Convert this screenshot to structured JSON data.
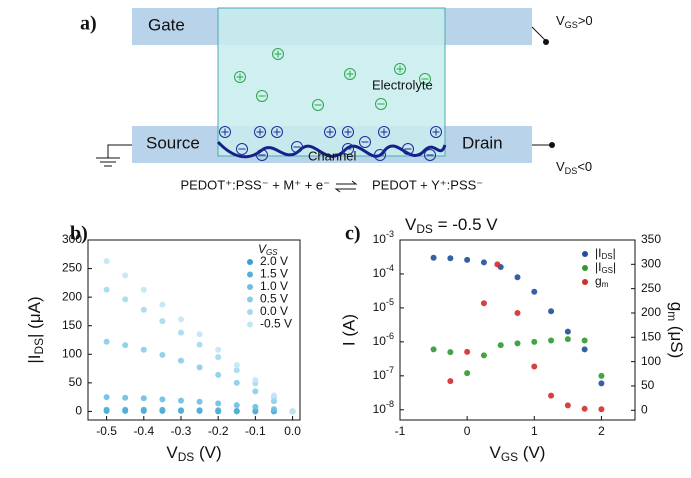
{
  "diagram": {
    "label": "a)",
    "gate": "Gate",
    "source": "Source",
    "drain": "Drain",
    "channel": "Channel",
    "electrolyte": "Electrolyte",
    "vgs": {
      "main": "V",
      "sub": "GS",
      "rest": ">0"
    },
    "vds": {
      "main": "V",
      "sub": "DS",
      "rest": "<0"
    },
    "equation_left": "PEDOT⁺:PSS⁻ + M⁺ + e⁻",
    "equation_right": "PEDOT + Y⁺:PSS⁻"
  },
  "chart_data": [
    {
      "type": "scatter",
      "panel": "b)",
      "x_label": {
        "main": "V",
        "sub": "DS",
        "rest": " (V)"
      },
      "y_label": {
        "pre": "|I",
        "sub": "DS",
        "rest": "| (μA)"
      },
      "legend_title": "VGS",
      "x": [
        -0.5,
        -0.45,
        -0.4,
        -0.35,
        -0.3,
        -0.25,
        -0.2,
        -0.15,
        -0.1,
        -0.05,
        0
      ],
      "xlim": [
        -0.55,
        0.02
      ],
      "xticks": [
        -0.5,
        -0.4,
        -0.3,
        -0.2,
        -0.1,
        {
          "value": 0,
          "label": "0.0"
        }
      ],
      "ylim": [
        -15,
        300
      ],
      "yticks": [
        0,
        50,
        100,
        150,
        200,
        250,
        300
      ],
      "series": [
        {
          "name": "2.0 V",
          "color": "#3aa0cf",
          "values": [
            1,
            1,
            1,
            1,
            1,
            1,
            0,
            0,
            0,
            0,
            0
          ]
        },
        {
          "name": "1.5 V",
          "color": "#52b0da",
          "values": [
            3,
            3,
            3,
            3,
            2,
            2,
            2,
            1,
            1,
            0,
            0
          ]
        },
        {
          "name": "1.0 V",
          "color": "#6cbfe2",
          "values": [
            25,
            24,
            23,
            21,
            19,
            17,
            14,
            11,
            8,
            4,
            0
          ]
        },
        {
          "name": "0.5 V",
          "color": "#88cce8",
          "values": [
            122,
            116,
            108,
            99,
            89,
            77,
            64,
            50,
            35,
            18,
            0
          ]
        },
        {
          "name": "0.0 V",
          "color": "#a4d9ee",
          "values": [
            213,
            196,
            178,
            158,
            138,
            117,
            95,
            72,
            49,
            25,
            0
          ]
        },
        {
          "name": "-0.5 V",
          "color": "#c2e6f4",
          "values": [
            263,
            238,
            213,
            187,
            161,
            135,
            108,
            81,
            55,
            28,
            0
          ]
        }
      ]
    },
    {
      "type": "scatter",
      "panel": "c)",
      "title": {
        "main": "V",
        "sub": "DS",
        "rest": " = -0.5 V"
      },
      "x_label": {
        "main": "V",
        "sub": "GS",
        "rest": " (V)"
      },
      "y_label": "I (A)",
      "y2_label": {
        "main": "g",
        "sub": "m",
        "rest": " (μS)"
      },
      "log_y": true,
      "xlim": [
        -1,
        2.5
      ],
      "xticks": [
        -1,
        0,
        1,
        2
      ],
      "ylim": [
        5e-09,
        0.001
      ],
      "yticks": [
        {
          "value": 1e-08,
          "label": "10-8"
        },
        {
          "value": 1e-07,
          "label": "10-7"
        },
        {
          "value": 1e-06,
          "label": "10-6"
        },
        {
          "value": 1e-05,
          "label": "10-5"
        },
        {
          "value": 0.0001,
          "label": "10-4"
        },
        {
          "value": 0.001,
          "label": "10-3"
        }
      ],
      "y2lim": [
        -20,
        350
      ],
      "y2ticks": [
        0,
        50,
        100,
        150,
        200,
        250,
        300,
        350
      ],
      "series": [
        {
          "name": "|IDS|",
          "color": "#1f4e9c",
          "x": [
            -0.5,
            -0.25,
            0,
            0.25,
            0.5,
            0.75,
            1,
            1.25,
            1.5,
            1.75,
            2
          ],
          "values": [
            0.0003,
            0.00029,
            0.00026,
            0.00022,
            0.00016,
            8e-05,
            3e-05,
            8e-06,
            2e-06,
            6e-07,
            6e-08
          ]
        },
        {
          "name": "|IGS|",
          "color": "#2e9a2e",
          "x": [
            -0.5,
            -0.25,
            0,
            0.25,
            0.5,
            0.75,
            1,
            1.25,
            1.5,
            1.75,
            2
          ],
          "values": [
            6e-07,
            5e-07,
            1.2e-07,
            4e-07,
            8e-07,
            9e-07,
            1e-06,
            1.1e-06,
            1.2e-06,
            1.1e-06,
            1e-07
          ]
        },
        {
          "name": "gm",
          "color": "#d42a2a",
          "axis": "y2",
          "x": [
            -0.25,
            0,
            0.25,
            0.45,
            0.75,
            1,
            1.25,
            1.5,
            1.75,
            2
          ],
          "values": [
            60,
            120,
            220,
            300,
            200,
            90,
            30,
            10,
            3,
            2
          ]
        }
      ]
    }
  ]
}
